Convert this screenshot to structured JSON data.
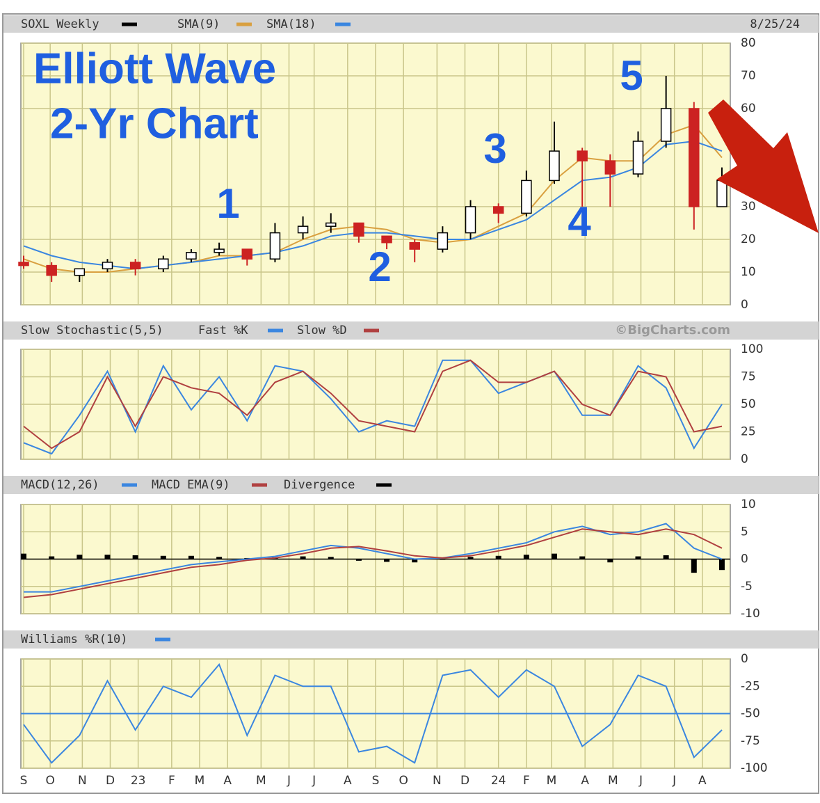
{
  "chart_data": [
    {
      "type": "candlestick",
      "title": "SOXL Weekly",
      "color": "#000000",
      "date": "8/25/24",
      "color_up": "#ffffff",
      "color_down": "#cc2222",
      "open": [
        13,
        12,
        9,
        11,
        13,
        11,
        14,
        16,
        17,
        14,
        22,
        24,
        25,
        21,
        19,
        17,
        22,
        30,
        28,
        38,
        47,
        44,
        40,
        50,
        60,
        30
      ],
      "high": [
        15,
        13,
        11,
        14,
        14,
        15,
        17,
        19,
        17,
        25,
        27,
        28,
        25,
        21,
        20,
        24,
        32,
        31,
        41,
        56,
        48,
        46,
        53,
        70,
        62,
        42
      ],
      "low": [
        11,
        7,
        7,
        10,
        9,
        10,
        13,
        15,
        12,
        13,
        20,
        22,
        19,
        17,
        13,
        16,
        20,
        25,
        27,
        37,
        30,
        30,
        39,
        48,
        23,
        30
      ],
      "close": [
        12,
        9,
        11,
        13,
        11,
        14,
        16,
        17,
        14,
        22,
        24,
        25,
        21,
        19,
        17,
        22,
        30,
        28,
        38,
        47,
        44,
        40,
        50,
        60,
        30,
        38
      ],
      "series": [
        {
          "name": "SMA(9)",
          "color": "#d9a040",
          "values": [
            14,
            11,
            10,
            10,
            11,
            12,
            13,
            15,
            15,
            16,
            20,
            23,
            24,
            23,
            20,
            19,
            20,
            24,
            28,
            38,
            45,
            44,
            44,
            52,
            55,
            45
          ]
        },
        {
          "name": "SMA(18)",
          "color": "#3a86e0",
          "values": [
            18,
            15,
            13,
            12,
            11,
            12,
            13,
            14,
            15,
            16,
            18,
            21,
            22,
            22,
            21,
            20,
            20,
            23,
            26,
            32,
            38,
            39,
            42,
            49,
            50,
            47
          ]
        }
      ],
      "ylim": [
        0,
        80
      ],
      "yticks": [
        0,
        10,
        20,
        30,
        60,
        70,
        80
      ],
      "grid": true,
      "annotations": {
        "heading": [
          "Elliott Wave",
          "2-Yr Chart"
        ],
        "waves": [
          "1",
          "2",
          "3",
          "4",
          "5"
        ]
      }
    },
    {
      "type": "line",
      "title": "Slow Stochastic(5,5)",
      "source": "©BigCharts.com",
      "series": [
        {
          "name": "Fast %K",
          "color": "#3a86e0",
          "values": [
            15,
            5,
            40,
            80,
            25,
            85,
            45,
            75,
            35,
            85,
            80,
            55,
            25,
            35,
            30,
            90,
            90,
            60,
            70,
            80,
            40,
            40,
            85,
            65,
            10,
            50
          ]
        },
        {
          "name": "Slow %D",
          "color": "#b04040",
          "values": [
            30,
            10,
            25,
            75,
            30,
            75,
            65,
            60,
            40,
            70,
            80,
            60,
            35,
            30,
            25,
            80,
            90,
            70,
            70,
            80,
            50,
            40,
            80,
            75,
            25,
            30
          ]
        }
      ],
      "ylim": [
        0,
        100
      ],
      "yticks": [
        0,
        25,
        50,
        75,
        100
      ],
      "grid": true
    },
    {
      "type": "line",
      "title": "MACD(12,26)",
      "series": [
        {
          "name": "MACD(12,26)",
          "color": "#3a86e0",
          "values": [
            -6,
            -6,
            -5,
            -4,
            -3,
            -2,
            -1,
            -0.5,
            0,
            0.5,
            1.5,
            2.5,
            2,
            1,
            0,
            0.2,
            1,
            2,
            3,
            5,
            6,
            4.5,
            5,
            6.5,
            2,
            0
          ]
        },
        {
          "name": "MACD EMA(9)",
          "color": "#b04040",
          "values": [
            -7,
            -6.5,
            -5.5,
            -4.5,
            -3.5,
            -2.5,
            -1.5,
            -1,
            -0.2,
            0.2,
            1,
            2,
            2.3,
            1.5,
            0.6,
            0.2,
            0.6,
            1.5,
            2.5,
            4,
            5.5,
            5,
            4.5,
            5.5,
            4.5,
            2
          ]
        },
        {
          "name": "Divergence",
          "type": "bar",
          "color": "#000000",
          "values": [
            1,
            0.5,
            0.8,
            0.8,
            0.7,
            0.6,
            0.6,
            0.4,
            0.2,
            0.3,
            0.5,
            0.4,
            -0.3,
            -0.5,
            -0.6,
            0,
            0.4,
            0.6,
            0.8,
            1,
            0.5,
            -0.6,
            0.5,
            0.7,
            -2.5,
            -2
          ]
        }
      ],
      "ylim": [
        -10,
        10
      ],
      "yticks": [
        10,
        5,
        0,
        -5,
        -10
      ],
      "grid": true
    },
    {
      "type": "line",
      "title": "Williams %R(10)",
      "series": [
        {
          "name": "Williams %R(10)",
          "color": "#3a86e0",
          "values": [
            -60,
            -95,
            -70,
            -20,
            -65,
            -25,
            -35,
            -5,
            -70,
            -15,
            -25,
            -25,
            -85,
            -80,
            -95,
            -15,
            -10,
            -35,
            -10,
            -25,
            -80,
            -60,
            -15,
            -25,
            -90,
            -65
          ]
        }
      ],
      "reference_line": -50,
      "ylim": [
        -100,
        0
      ],
      "yticks": [
        0,
        -25,
        -50,
        -75,
        -100
      ],
      "grid": true,
      "x": [
        0,
        1,
        2,
        3,
        4,
        5,
        6,
        7,
        8,
        9,
        10,
        11,
        12,
        13,
        14,
        15,
        16,
        17,
        18,
        19,
        20,
        21,
        22,
        23,
        24,
        25
      ],
      "xlim": [
        -0.1,
        25.3
      ],
      "xticks": [
        {
          "value": 0,
          "label": "S"
        },
        {
          "value": 0.95,
          "label": "O"
        },
        {
          "value": 2.1,
          "label": "N"
        },
        {
          "value": 3.1,
          "label": "D"
        },
        {
          "value": 4.1,
          "label": "23"
        },
        {
          "value": 5.3,
          "label": "F"
        },
        {
          "value": 6.3,
          "label": "M"
        },
        {
          "value": 7.3,
          "label": "A"
        },
        {
          "value": 8.5,
          "label": "M"
        },
        {
          "value": 9.5,
          "label": "J"
        },
        {
          "value": 10.4,
          "label": "J"
        },
        {
          "value": 11.6,
          "label": "A"
        },
        {
          "value": 12.6,
          "label": "S"
        },
        {
          "value": 13.6,
          "label": "O"
        },
        {
          "value": 14.8,
          "label": "N"
        },
        {
          "value": 15.8,
          "label": "D"
        },
        {
          "value": 17.0,
          "label": "24"
        },
        {
          "value": 18.0,
          "label": "F"
        },
        {
          "value": 18.9,
          "label": "M"
        },
        {
          "value": 20.1,
          "label": "A"
        },
        {
          "value": 21.1,
          "label": "M"
        },
        {
          "value": 22.1,
          "label": "J"
        },
        {
          "value": 23.3,
          "label": "J"
        },
        {
          "value": 24.3,
          "label": "A"
        }
      ]
    }
  ]
}
